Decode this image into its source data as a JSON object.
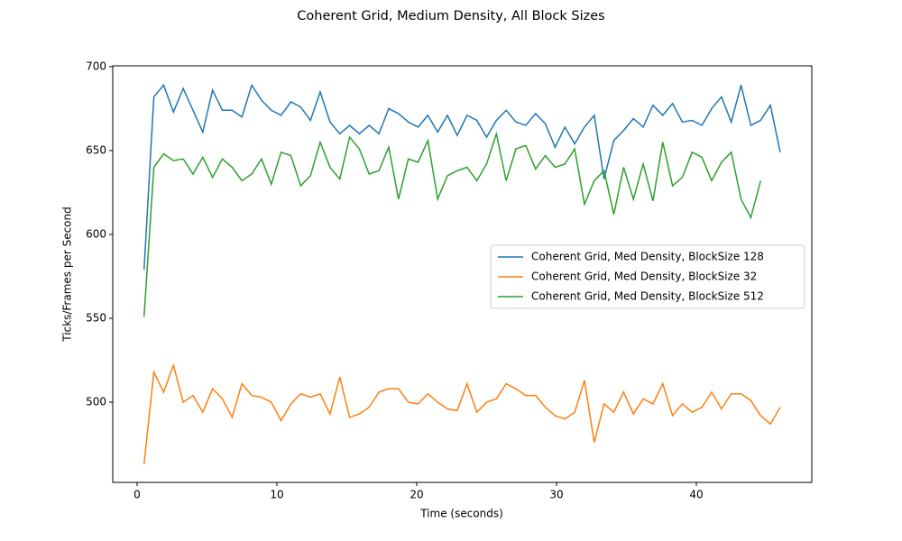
{
  "chart_data": {
    "type": "line",
    "title": "Coherent Grid, Medium Density, All Block Sizes",
    "x_label": "Time (seconds)",
    "y_label": "Ticks/Frames per Second",
    "x": [
      0.5,
      1.2,
      1.9,
      2.6,
      3.3,
      4,
      4.7,
      5.4,
      6.1,
      6.8,
      7.5,
      8.2,
      8.9,
      9.6,
      10.3,
      11,
      11.7,
      12.4,
      13.1,
      13.8,
      14.5,
      15.2,
      15.9,
      16.6,
      17.3,
      18,
      18.7,
      19.4,
      20.1,
      20.8,
      21.5,
      22.2,
      22.9,
      23.6,
      24.3,
      25,
      25.7,
      26.4,
      27.1,
      27.8,
      28.5,
      29.2,
      29.9,
      30.6,
      31.3,
      32,
      32.7,
      33.4,
      34.1,
      34.8,
      35.5,
      36.2,
      36.9,
      37.6,
      38.3,
      39,
      39.7,
      40.4,
      41.1,
      41.8,
      42.5,
      43.2,
      43.9,
      44.6,
      45.3,
      46
    ],
    "series": [
      {
        "name": "Coherent Grid, Med Density, BlockSize 128",
        "color": "#1f77b4",
        "values": [
          579,
          682,
          689,
          673,
          687,
          674,
          661,
          686,
          674,
          674,
          670,
          689,
          680,
          674,
          671,
          679,
          676,
          668,
          685,
          667,
          660,
          665,
          660,
          665,
          660,
          675,
          672,
          667,
          664,
          671,
          661,
          671,
          659,
          671,
          668,
          658,
          668,
          674,
          667,
          665,
          672,
          666,
          652,
          664,
          654,
          664,
          671,
          633,
          656,
          662,
          669,
          664,
          677,
          671,
          678,
          667,
          668,
          665,
          675,
          682,
          667,
          689,
          665,
          668,
          677,
          649
        ]
      },
      {
        "name": "Coherent Grid, Med Density, BlockSize 32",
        "color": "#ff7f0e",
        "values": [
          463,
          518,
          506,
          522,
          500,
          504,
          494,
          508,
          502,
          491,
          511,
          504,
          503,
          500,
          489,
          499,
          505,
          503,
          505,
          493,
          515,
          491,
          493,
          497,
          506,
          508,
          508,
          500,
          499,
          505,
          500,
          496,
          495,
          511,
          494,
          500,
          502,
          511,
          508,
          504,
          504,
          497,
          492,
          490,
          494,
          513,
          476,
          499,
          494,
          506,
          493,
          502,
          499,
          511,
          492,
          499,
          494,
          497,
          506,
          496,
          505,
          505,
          501,
          492,
          487,
          497
        ]
      },
      {
        "name": "Coherent Grid, Med Density, BlockSize 512",
        "color": "#2ca02c",
        "values": [
          551,
          640,
          648,
          644,
          645,
          636,
          646,
          634,
          645,
          640,
          632,
          636,
          645,
          630,
          649,
          647,
          629,
          635,
          655,
          640,
          633,
          658,
          651,
          636,
          638,
          652,
          621,
          645,
          643,
          656,
          621,
          635,
          638,
          640,
          632,
          642,
          660,
          632,
          651,
          653,
          639,
          647,
          640,
          642,
          651,
          618,
          632,
          638,
          612,
          640,
          621,
          642,
          620,
          655,
          629,
          634,
          649,
          646,
          632,
          643,
          649,
          621,
          610,
          632,
          null,
          null
        ]
      }
    ],
    "xlim": [
      -1.74,
      48.26
    ],
    "ylim": [
      452.2,
      700.5
    ],
    "xticks": [
      0,
      10,
      20,
      30,
      40
    ],
    "yticks": [
      500,
      550,
      600,
      650,
      700
    ],
    "legend": "center right",
    "grid": false
  }
}
